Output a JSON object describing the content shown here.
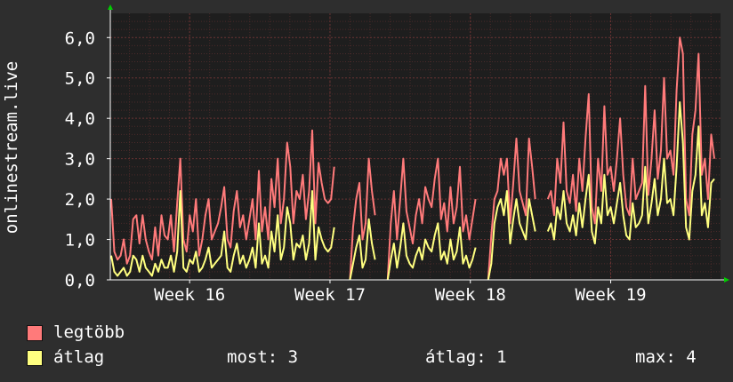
{
  "colors": {
    "background": "#2e2e2e",
    "plot_background": "#1e1e1e",
    "grid": "#6a3333",
    "grid_minor": "#4a2a2a",
    "axis": "#ffffff",
    "max_series": "#ff7a7a",
    "avg_series": "#ffff80",
    "arrow": "#00cc00"
  },
  "chart_data": {
    "type": "line",
    "ylabel": "onlinestream.live",
    "ylim": [
      0,
      6.6
    ],
    "yticks": [
      "0,0",
      "1,0",
      "2,0",
      "3,0",
      "4,0",
      "5,0",
      "6,0"
    ],
    "ytick_values": [
      0,
      1,
      2,
      3,
      4,
      5,
      6
    ],
    "xlim": [
      0,
      100
    ],
    "xticks": [
      {
        "label": "Week 16",
        "value": 13
      },
      {
        "label": "Week 17",
        "value": 36
      },
      {
        "label": "Week 18",
        "value": 59
      },
      {
        "label": "Week 19",
        "value": 82
      }
    ],
    "grid": true,
    "series": [
      {
        "name": "legtöbb",
        "color": "#ff7a7a",
        "fill": false,
        "values": [
          2.0,
          0.7,
          0.5,
          0.6,
          1.0,
          0.4,
          0.6,
          1.5,
          1.6,
          0.9,
          1.6,
          1.0,
          0.7,
          0.5,
          1.3,
          0.6,
          1.6,
          1.1,
          1.0,
          1.6,
          0.7,
          1.9,
          3.0,
          1.0,
          0.7,
          1.6,
          1.2,
          2.0,
          0.6,
          1.0,
          1.6,
          2.0,
          1.0,
          1.2,
          1.4,
          1.8,
          2.3,
          1.0,
          0.8,
          1.7,
          2.2,
          1.3,
          1.6,
          1.0,
          1.5,
          2.0,
          1.0,
          2.7,
          1.2,
          1.8,
          1.0,
          2.5,
          1.8,
          3.0,
          1.4,
          2.0,
          3.4,
          2.8,
          1.4,
          2.2,
          2.0,
          2.6,
          1.5,
          2.2,
          3.7,
          1.4,
          2.9,
          2.4,
          2.0,
          1.9,
          2.0,
          2.8,
          null,
          null,
          null,
          null,
          0,
          1.3,
          2.0,
          2.4,
          1.0,
          1.4,
          3.0,
          2.2,
          1.6,
          null,
          null,
          null,
          0,
          1.4,
          2.2,
          1.0,
          2.0,
          3.0,
          1.7,
          1.3,
          0.9,
          1.6,
          2.0,
          1.4,
          2.3,
          2.0,
          1.8,
          2.5,
          3.0,
          1.5,
          1.9,
          1.2,
          2.3,
          1.4,
          1.8,
          2.8,
          1.2,
          1.6,
          1.0,
          1.5,
          2.0,
          null,
          null,
          null,
          0,
          1.1,
          2.0,
          2.2,
          3.0,
          2.6,
          3.0,
          1.4,
          2.4,
          3.5,
          2.2,
          1.9,
          1.6,
          3.5,
          2.8,
          2.0,
          null,
          null,
          null,
          2.0,
          2.2,
          1.6,
          3.0,
          2.4,
          3.9,
          2.2,
          1.9,
          2.6,
          1.7,
          3.0,
          2.2,
          3.5,
          4.6,
          1.8,
          1.4,
          3.0,
          2.2,
          4.3,
          2.6,
          2.8,
          2.2,
          3.0,
          4.0,
          2.6,
          1.8,
          1.6,
          3.0,
          2.0,
          2.2,
          2.4,
          4.8,
          2.1,
          3.0,
          4.2,
          2.5,
          3.2,
          5.0,
          3.0,
          3.2,
          2.6,
          4.7,
          6.0,
          5.6,
          2.0,
          1.6,
          3.6,
          4.2,
          5.6,
          2.6,
          3.0,
          2.0,
          3.6,
          3.0
        ]
      },
      {
        "name": "átlag",
        "color": "#ffff80",
        "fill": false,
        "values": [
          0.6,
          0.2,
          0.1,
          0.2,
          0.3,
          0.1,
          0.2,
          0.6,
          0.5,
          0.2,
          0.6,
          0.3,
          0.2,
          0.1,
          0.4,
          0.2,
          0.5,
          0.3,
          0.3,
          0.6,
          0.2,
          0.7,
          2.2,
          0.3,
          0.2,
          0.5,
          0.4,
          0.7,
          0.2,
          0.3,
          0.5,
          0.8,
          0.3,
          0.4,
          0.5,
          0.6,
          1.2,
          0.3,
          0.2,
          0.6,
          0.9,
          0.4,
          0.6,
          0.3,
          0.5,
          0.8,
          0.3,
          1.4,
          0.4,
          0.6,
          0.3,
          1.2,
          0.7,
          1.6,
          0.5,
          0.8,
          1.8,
          1.4,
          0.5,
          0.9,
          0.8,
          1.1,
          0.5,
          0.9,
          2.2,
          0.5,
          1.3,
          1.0,
          0.8,
          0.7,
          0.8,
          1.3,
          null,
          null,
          null,
          null,
          0,
          0.4,
          0.8,
          1.1,
          0.3,
          0.5,
          1.5,
          0.9,
          0.5,
          null,
          null,
          null,
          0,
          0.5,
          0.9,
          0.3,
          0.8,
          1.4,
          0.6,
          0.4,
          0.3,
          0.6,
          0.8,
          0.5,
          1.0,
          0.8,
          0.7,
          1.1,
          1.4,
          0.5,
          0.7,
          0.4,
          1.0,
          0.5,
          0.7,
          1.3,
          0.4,
          0.6,
          0.3,
          0.5,
          0.8,
          null,
          null,
          null,
          0,
          0.4,
          1.4,
          1.8,
          2.0,
          1.6,
          2.2,
          0.9,
          1.5,
          2.0,
          1.4,
          1.2,
          1.0,
          2.0,
          1.6,
          1.2,
          null,
          null,
          null,
          1.2,
          1.4,
          1.0,
          1.8,
          1.5,
          2.2,
          1.4,
          1.2,
          1.6,
          1.1,
          1.9,
          1.3,
          2.0,
          2.6,
          1.2,
          0.9,
          1.8,
          1.4,
          2.6,
          1.6,
          1.8,
          1.4,
          1.9,
          2.4,
          1.6,
          1.1,
          1.0,
          1.9,
          1.3,
          1.4,
          1.6,
          2.8,
          1.4,
          1.9,
          2.5,
          1.6,
          2.0,
          3.0,
          1.9,
          2.0,
          1.6,
          2.8,
          4.4,
          3.4,
          1.3,
          1.0,
          2.2,
          2.6,
          3.8,
          1.6,
          1.9,
          1.3,
          2.4,
          2.5
        ]
      }
    ]
  },
  "legend": {
    "items": [
      {
        "label": "legtöbb",
        "color": "#ff7a7a"
      },
      {
        "label": "átlag",
        "color": "#ffff80"
      }
    ],
    "stats": {
      "now": "most: 3",
      "avg": "átlag: 1",
      "max": "max: 4"
    }
  }
}
